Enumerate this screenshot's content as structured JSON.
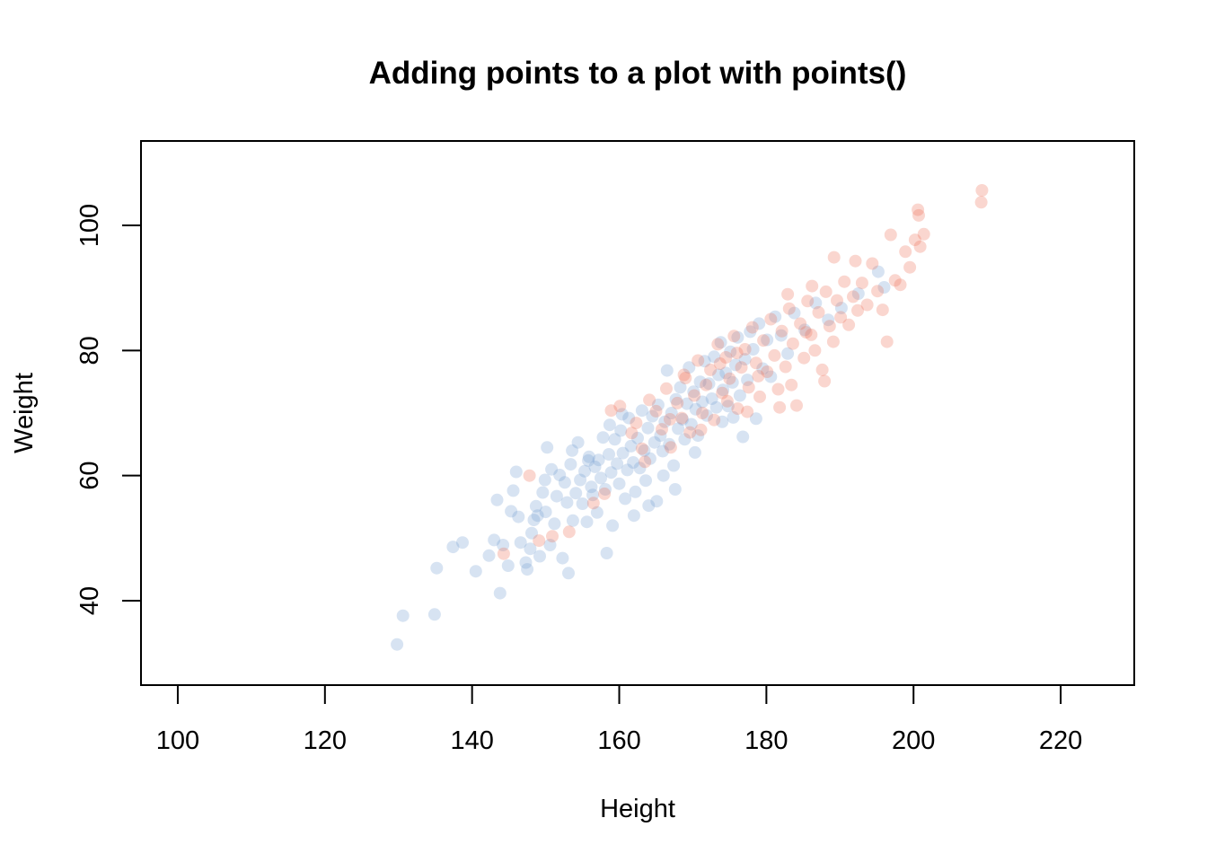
{
  "chart_data": {
    "type": "scatter",
    "title": "Adding points to a plot with points()",
    "xlabel": "Height",
    "ylabel": "Weight",
    "xlim": [
      95,
      230
    ],
    "ylim": [
      26.5,
      113.5
    ],
    "xticks": [
      100,
      120,
      140,
      160,
      180,
      200,
      220
    ],
    "yticks": [
      40,
      60,
      80,
      100
    ],
    "grid": false,
    "legend": "none",
    "series": [
      {
        "color": "#6f9bd1",
        "opacity": 0.28,
        "points": [
          [
            129.8,
            33.0
          ],
          [
            130.6,
            37.6
          ],
          [
            134.9,
            37.8
          ],
          [
            135.2,
            45.2
          ],
          [
            137.4,
            48.6
          ],
          [
            138.7,
            49.3
          ],
          [
            140.5,
            44.7
          ],
          [
            142.3,
            47.2
          ],
          [
            143.0,
            49.7
          ],
          [
            143.8,
            41.2
          ],
          [
            143.4,
            56.1
          ],
          [
            144.2,
            48.9
          ],
          [
            144.9,
            45.6
          ],
          [
            145.6,
            57.6
          ],
          [
            146.3,
            53.4
          ],
          [
            146.6,
            49.3
          ],
          [
            147.3,
            46.1
          ],
          [
            147.5,
            45.0
          ],
          [
            147.9,
            48.3
          ],
          [
            148.1,
            50.8
          ],
          [
            148.4,
            52.9
          ],
          [
            148.7,
            55.1
          ],
          [
            148.9,
            53.6
          ],
          [
            149.2,
            47.1
          ],
          [
            149.6,
            57.3
          ],
          [
            150.0,
            54.2
          ],
          [
            150.2,
            64.5
          ],
          [
            150.6,
            48.9
          ],
          [
            150.8,
            61.0
          ],
          [
            151.2,
            52.3
          ],
          [
            151.5,
            56.7
          ],
          [
            151.9,
            60.1
          ],
          [
            152.3,
            46.8
          ],
          [
            152.6,
            58.9
          ],
          [
            152.9,
            55.7
          ],
          [
            153.1,
            44.4
          ],
          [
            153.4,
            61.8
          ],
          [
            153.7,
            52.8
          ],
          [
            154.1,
            57.2
          ],
          [
            154.4,
            65.3
          ],
          [
            154.7,
            59.3
          ],
          [
            155.0,
            55.5
          ],
          [
            155.3,
            60.7
          ],
          [
            155.6,
            52.6
          ],
          [
            155.9,
            63.0
          ],
          [
            156.2,
            58.2
          ],
          [
            156.4,
            56.9
          ],
          [
            156.7,
            61.4
          ],
          [
            157.0,
            54.1
          ],
          [
            157.2,
            62.5
          ],
          [
            157.5,
            59.6
          ],
          [
            157.8,
            66.1
          ],
          [
            158.1,
            57.8
          ],
          [
            158.3,
            47.6
          ],
          [
            158.6,
            63.4
          ],
          [
            158.9,
            60.5
          ],
          [
            159.1,
            52.0
          ],
          [
            159.4,
            65.8
          ],
          [
            159.7,
            61.9
          ],
          [
            160.0,
            58.7
          ],
          [
            160.2,
            67.2
          ],
          [
            160.5,
            63.6
          ],
          [
            160.8,
            56.3
          ],
          [
            161.1,
            60.9
          ],
          [
            161.3,
            69.2
          ],
          [
            161.6,
            64.7
          ],
          [
            161.9,
            62.1
          ],
          [
            162.2,
            57.4
          ],
          [
            162.5,
            66.0
          ],
          [
            162.8,
            61.2
          ],
          [
            163.1,
            70.4
          ],
          [
            163.4,
            64.0
          ],
          [
            163.6,
            59.2
          ],
          [
            163.9,
            67.6
          ],
          [
            164.2,
            62.7
          ],
          [
            164.5,
            69.5
          ],
          [
            164.8,
            65.3
          ],
          [
            165.1,
            55.9
          ],
          [
            165.3,
            71.3
          ],
          [
            165.6,
            66.4
          ],
          [
            165.9,
            63.9
          ],
          [
            166.2,
            68.6
          ],
          [
            166.5,
            76.8
          ],
          [
            166.8,
            65.0
          ],
          [
            167.1,
            70.0
          ],
          [
            167.4,
            61.6
          ],
          [
            167.7,
            72.2
          ],
          [
            168.0,
            67.5
          ],
          [
            168.3,
            74.1
          ],
          [
            168.6,
            69.0
          ],
          [
            168.9,
            65.8
          ],
          [
            169.2,
            71.5
          ],
          [
            169.5,
            77.3
          ],
          [
            169.8,
            68.2
          ],
          [
            170.1,
            73.4
          ],
          [
            170.4,
            70.6
          ],
          [
            170.7,
            66.4
          ],
          [
            171.0,
            75.0
          ],
          [
            171.3,
            71.8
          ],
          [
            171.6,
            78.3
          ],
          [
            171.9,
            69.6
          ],
          [
            172.2,
            74.7
          ],
          [
            172.6,
            72.3
          ],
          [
            172.9,
            79.0
          ],
          [
            173.2,
            70.9
          ],
          [
            173.5,
            76.1
          ],
          [
            173.8,
            81.3
          ],
          [
            174.1,
            73.7
          ],
          [
            174.5,
            76.4
          ],
          [
            174.8,
            71.1
          ],
          [
            175.1,
            79.8
          ],
          [
            175.4,
            74.9
          ],
          [
            175.8,
            77.7
          ],
          [
            176.1,
            82.1
          ],
          [
            176.4,
            72.8
          ],
          [
            176.8,
            66.2
          ],
          [
            177.1,
            78.6
          ],
          [
            177.4,
            75.3
          ],
          [
            177.8,
            83.0
          ],
          [
            178.2,
            80.2
          ],
          [
            178.6,
            69.1
          ],
          [
            179.0,
            84.3
          ],
          [
            179.5,
            77.1
          ],
          [
            180.1,
            81.7
          ],
          [
            180.6,
            75.8
          ],
          [
            181.2,
            85.4
          ],
          [
            182.0,
            82.4
          ],
          [
            182.9,
            79.5
          ],
          [
            183.8,
            86.0
          ],
          [
            185.2,
            83.3
          ],
          [
            186.7,
            87.6
          ],
          [
            188.4,
            84.9
          ],
          [
            190.2,
            86.8
          ],
          [
            192.5,
            89.1
          ],
          [
            195.2,
            92.6
          ],
          [
            196.0,
            90.1
          ],
          [
            160.4,
            69.8
          ],
          [
            158.7,
            68.1
          ],
          [
            166.0,
            60.0
          ],
          [
            155.8,
            62.4
          ],
          [
            162.0,
            53.6
          ],
          [
            164.0,
            55.2
          ],
          [
            167.6,
            57.8
          ],
          [
            170.3,
            63.7
          ],
          [
            174.0,
            68.6
          ],
          [
            175.5,
            69.3
          ],
          [
            153.6,
            64.0
          ],
          [
            149.9,
            59.3
          ],
          [
            146.0,
            60.6
          ],
          [
            145.3,
            54.3
          ]
        ]
      },
      {
        "color": "#ec6b52",
        "opacity": 0.28,
        "points": [
          [
            144.3,
            47.5
          ],
          [
            147.8,
            60.0
          ],
          [
            149.1,
            49.6
          ],
          [
            150.9,
            50.3
          ],
          [
            153.2,
            51.0
          ],
          [
            156.5,
            55.6
          ],
          [
            158.0,
            57.1
          ],
          [
            158.9,
            70.4
          ],
          [
            160.1,
            71.1
          ],
          [
            161.7,
            66.8
          ],
          [
            162.3,
            68.4
          ],
          [
            163.5,
            62.2
          ],
          [
            164.1,
            72.1
          ],
          [
            165.0,
            70.3
          ],
          [
            165.8,
            67.4
          ],
          [
            166.4,
            73.9
          ],
          [
            167.0,
            64.5
          ],
          [
            167.9,
            71.6
          ],
          [
            168.5,
            69.2
          ],
          [
            169.0,
            75.6
          ],
          [
            169.6,
            66.9
          ],
          [
            170.2,
            72.8
          ],
          [
            170.7,
            78.4
          ],
          [
            171.3,
            70.0
          ],
          [
            171.8,
            74.5
          ],
          [
            172.4,
            76.9
          ],
          [
            172.9,
            68.9
          ],
          [
            173.4,
            81.0
          ],
          [
            174.0,
            73.2
          ],
          [
            174.5,
            78.9
          ],
          [
            175.0,
            75.5
          ],
          [
            175.6,
            82.3
          ],
          [
            176.1,
            70.7
          ],
          [
            176.6,
            77.3
          ],
          [
            177.1,
            80.2
          ],
          [
            177.6,
            74.1
          ],
          [
            178.1,
            83.7
          ],
          [
            178.6,
            78.0
          ],
          [
            179.1,
            72.6
          ],
          [
            179.6,
            81.6
          ],
          [
            180.1,
            76.6
          ],
          [
            180.6,
            85.0
          ],
          [
            181.1,
            79.2
          ],
          [
            181.6,
            73.8
          ],
          [
            182.1,
            83.1
          ],
          [
            182.6,
            77.4
          ],
          [
            183.1,
            86.7
          ],
          [
            183.6,
            81.1
          ],
          [
            184.1,
            71.2
          ],
          [
            184.6,
            84.3
          ],
          [
            185.1,
            78.8
          ],
          [
            185.6,
            87.9
          ],
          [
            186.1,
            82.5
          ],
          [
            186.6,
            80.0
          ],
          [
            187.1,
            86.1
          ],
          [
            187.6,
            76.9
          ],
          [
            188.1,
            89.4
          ],
          [
            188.6,
            83.9
          ],
          [
            189.1,
            81.4
          ],
          [
            189.6,
            88.0
          ],
          [
            190.1,
            85.3
          ],
          [
            190.6,
            91.0
          ],
          [
            191.2,
            84.1
          ],
          [
            191.8,
            88.6
          ],
          [
            192.4,
            86.4
          ],
          [
            193.0,
            90.8
          ],
          [
            193.7,
            87.3
          ],
          [
            194.4,
            93.9
          ],
          [
            195.1,
            89.5
          ],
          [
            195.8,
            86.5
          ],
          [
            196.4,
            81.4
          ],
          [
            196.9,
            98.5
          ],
          [
            197.5,
            91.2
          ],
          [
            198.2,
            90.5
          ],
          [
            198.9,
            95.8
          ],
          [
            199.5,
            93.3
          ],
          [
            200.2,
            97.7
          ],
          [
            200.6,
            102.5
          ],
          [
            200.7,
            101.6
          ],
          [
            200.9,
            96.6
          ],
          [
            201.4,
            98.6
          ],
          [
            209.2,
            103.7
          ],
          [
            209.3,
            105.6
          ],
          [
            176.0,
            79.6
          ],
          [
            178.9,
            75.9
          ],
          [
            181.8,
            70.9
          ],
          [
            174.7,
            71.9
          ],
          [
            171.1,
            67.3
          ],
          [
            168.8,
            76.1
          ],
          [
            186.2,
            90.3
          ],
          [
            189.2,
            94.9
          ],
          [
            192.1,
            94.3
          ],
          [
            182.9,
            89.0
          ],
          [
            183.4,
            74.5
          ],
          [
            187.9,
            75.1
          ],
          [
            185.4,
            82.9
          ],
          [
            173.7,
            77.9
          ],
          [
            177.4,
            70.2
          ],
          [
            166.9,
            69.0
          ],
          [
            163.1,
            64.3
          ]
        ]
      }
    ]
  }
}
